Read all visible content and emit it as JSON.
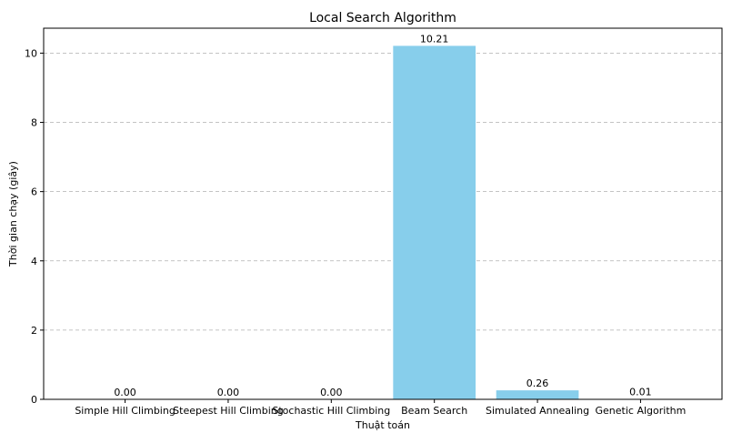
{
  "chart_data": {
    "type": "bar",
    "title": "Local Search Algorithm",
    "xlabel": "Thuật toán",
    "ylabel": "Thời gian chạy (giây)",
    "categories": [
      "Simple Hill Climbing",
      "Steepest Hill Climbing",
      "Stochastic Hill Climbing",
      "Beam Search",
      "Simulated Annealing",
      "Genetic Algorithm"
    ],
    "values": [
      0.0,
      0.0,
      0.0,
      10.21,
      0.26,
      0.01
    ],
    "value_labels": [
      "0.00",
      "0.00",
      "0.00",
      "10.21",
      "0.26",
      "0.01"
    ],
    "ylim": [
      0,
      10.72
    ],
    "yticks": [
      0,
      2,
      4,
      6,
      8,
      10
    ],
    "grid": "y-dashed",
    "bar_color": "#87ceeb",
    "legend": "none"
  }
}
